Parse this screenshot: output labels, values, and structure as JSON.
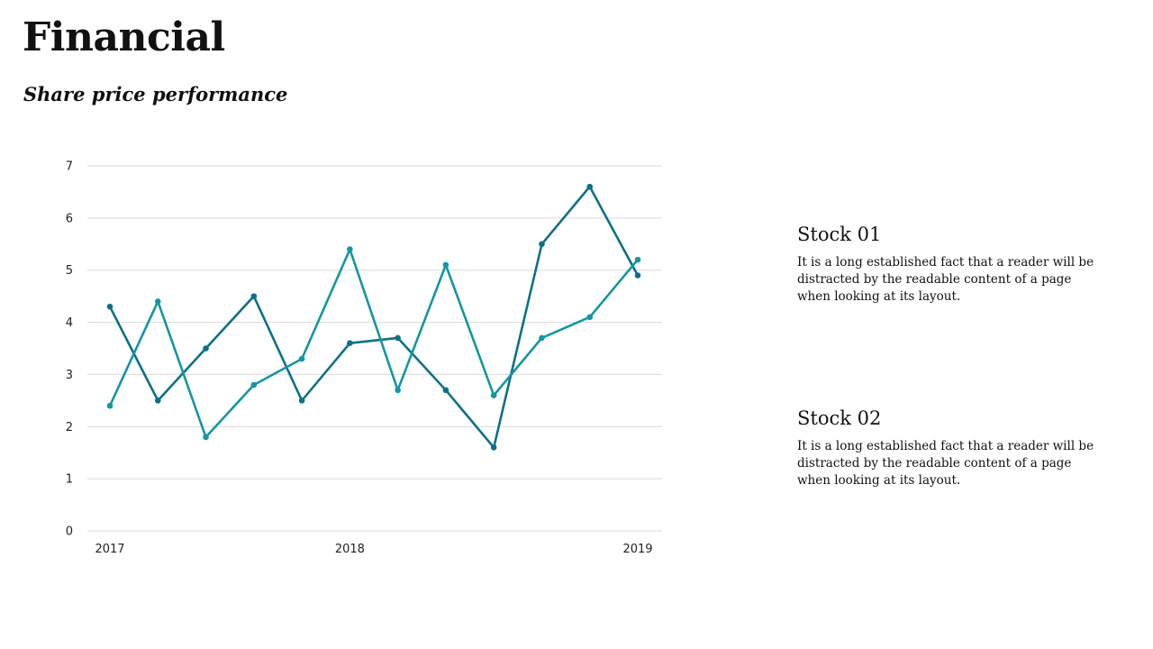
{
  "header": {
    "title": "Financial",
    "subtitle": "Share price performance"
  },
  "chart_data": {
    "type": "line",
    "title": "",
    "xlabel": "",
    "ylabel": "",
    "ylim": [
      0,
      7
    ],
    "yticks": [
      "0",
      "1",
      "2",
      "3",
      "4",
      "5",
      "6",
      "7"
    ],
    "x_tick_labels": [
      {
        "label": "2017",
        "index": 0
      },
      {
        "label": "2018",
        "index": 5
      },
      {
        "label": "2019",
        "index": 11
      }
    ],
    "grid": true,
    "series": [
      {
        "color": "#0e7088",
        "values": [
          4.3,
          2.5,
          3.5,
          4.5,
          2.5,
          3.6,
          3.7,
          2.7,
          1.6,
          5.5,
          6.6,
          4.9
        ]
      },
      {
        "color": "#1396a3",
        "values": [
          2.4,
          4.4,
          1.8,
          2.8,
          3.3,
          5.4,
          2.7,
          5.1,
          2.6,
          3.7,
          4.1,
          5.2
        ]
      }
    ]
  },
  "legend": [
    {
      "title": "Stock 01",
      "description": "It is a long established fact that a reader will be distracted by the readable content of a page when looking at its layout."
    },
    {
      "title": "Stock 02",
      "description": "It is a long established fact that a reader will be distracted by the readable content of a page when looking at its layout."
    }
  ]
}
